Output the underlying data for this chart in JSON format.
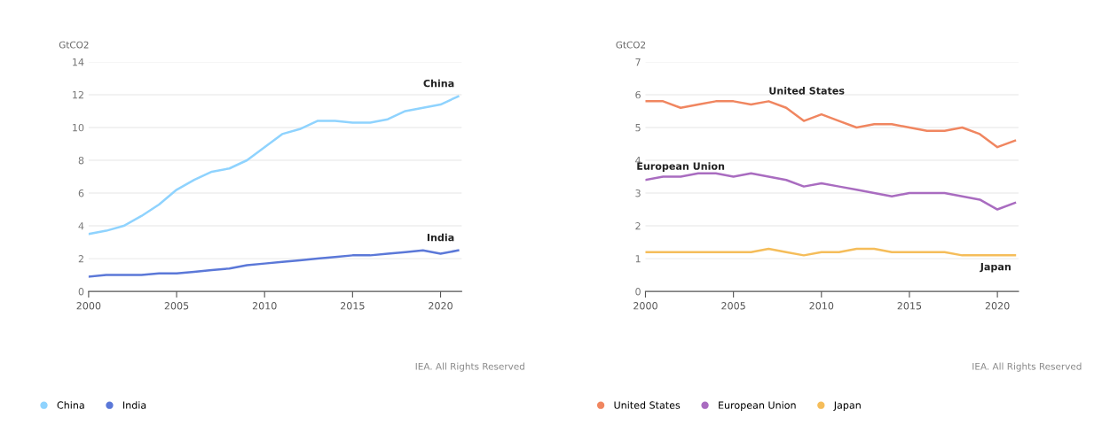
{
  "chart_data": [
    {
      "type": "line",
      "ylabel": "GtCO2",
      "x": [
        2000,
        2001,
        2002,
        2003,
        2004,
        2005,
        2006,
        2007,
        2008,
        2009,
        2010,
        2011,
        2012,
        2013,
        2014,
        2015,
        2016,
        2017,
        2018,
        2019,
        2020,
        2021
      ],
      "series": [
        {
          "name": "China",
          "color": "#8fd3fe",
          "values": [
            3.5,
            3.7,
            4.0,
            4.6,
            5.3,
            6.2,
            6.8,
            7.3,
            7.5,
            8.0,
            8.8,
            9.6,
            9.9,
            10.4,
            10.4,
            10.3,
            10.3,
            10.5,
            11.0,
            11.2,
            11.4,
            11.9
          ]
        },
        {
          "name": "India",
          "color": "#5b78d8",
          "values": [
            0.9,
            1.0,
            1.0,
            1.0,
            1.1,
            1.1,
            1.2,
            1.3,
            1.4,
            1.6,
            1.7,
            1.8,
            1.9,
            2.0,
            2.1,
            2.2,
            2.2,
            2.3,
            2.4,
            2.5,
            2.3,
            2.5
          ]
        }
      ],
      "xlim": [
        2000,
        2021.2
      ],
      "xticks": [
        2000,
        2005,
        2010,
        2015,
        2020
      ],
      "ylim": [
        0,
        14
      ],
      "yticks": [
        0,
        2,
        4,
        6,
        8,
        10,
        12,
        14
      ],
      "grid": "y",
      "legend": "bottom",
      "marker": "none",
      "line_style": "solid",
      "annotations": [
        "IEA. All Rights Reserved"
      ]
    },
    {
      "type": "line",
      "ylabel": "GtCO2",
      "x": [
        2000,
        2001,
        2002,
        2003,
        2004,
        2005,
        2006,
        2007,
        2008,
        2009,
        2010,
        2011,
        2012,
        2013,
        2014,
        2015,
        2016,
        2017,
        2018,
        2019,
        2020,
        2021
      ],
      "series": [
        {
          "name": "United States",
          "color": "#f08660",
          "values": [
            5.8,
            5.8,
            5.6,
            5.7,
            5.8,
            5.8,
            5.7,
            5.8,
            5.6,
            5.2,
            5.4,
            5.2,
            5.0,
            5.1,
            5.1,
            5.0,
            4.9,
            4.9,
            5.0,
            4.8,
            4.4,
            4.6
          ]
        },
        {
          "name": "European Union",
          "color": "#a96cc0",
          "values": [
            3.4,
            3.5,
            3.5,
            3.6,
            3.6,
            3.5,
            3.6,
            3.5,
            3.4,
            3.2,
            3.3,
            3.2,
            3.1,
            3.0,
            2.9,
            3.0,
            3.0,
            3.0,
            2.9,
            2.8,
            2.5,
            2.7
          ]
        },
        {
          "name": "Japan",
          "color": "#f5bd5a",
          "values": [
            1.2,
            1.2,
            1.2,
            1.2,
            1.2,
            1.2,
            1.2,
            1.3,
            1.2,
            1.1,
            1.2,
            1.2,
            1.3,
            1.3,
            1.2,
            1.2,
            1.2,
            1.2,
            1.1,
            1.1,
            1.1,
            1.1
          ]
        }
      ],
      "xlim": [
        2000,
        2021.2
      ],
      "xticks": [
        2000,
        2005,
        2010,
        2015,
        2020
      ],
      "ylim": [
        0,
        7
      ],
      "yticks": [
        0,
        1,
        2,
        3,
        4,
        5,
        6,
        7
      ],
      "grid": "y",
      "legend": "bottom",
      "marker": "none",
      "line_style": "solid",
      "annotations": [
        "IEA. All Rights Reserved"
      ]
    }
  ]
}
